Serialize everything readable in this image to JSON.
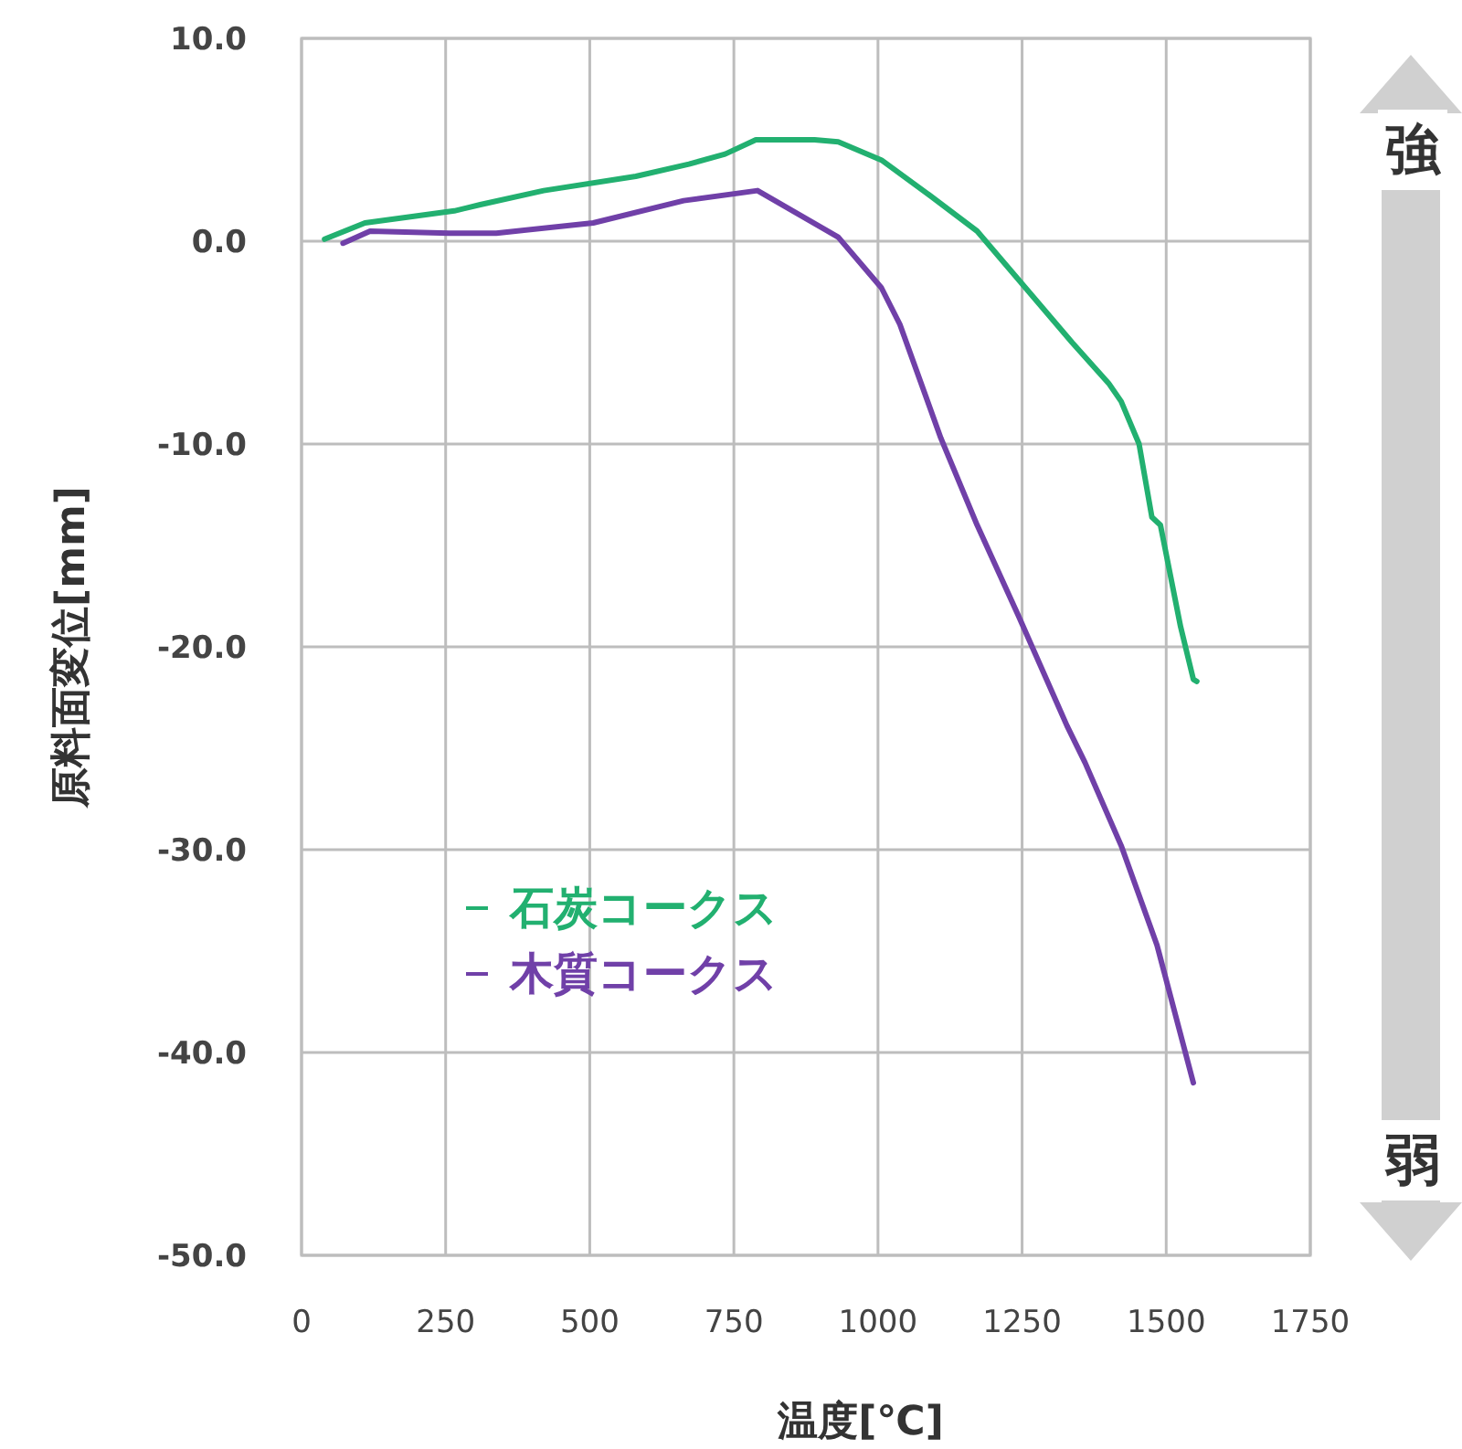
{
  "chart_data": {
    "type": "line",
    "xlabel": "温度[℃]",
    "ylabel": "原料面変位[mm]",
    "xlim": [
      0,
      1750
    ],
    "xticks": [
      0,
      250,
      500,
      750,
      1000,
      1250,
      1500,
      1750
    ],
    "ylim": [
      -50,
      10
    ],
    "yticks": [
      {
        "value": 10,
        "label": "10.0"
      },
      {
        "value": 0,
        "label": "0.0"
      },
      {
        "value": -10,
        "label": "-10.0"
      },
      {
        "value": -20,
        "label": "-20.0"
      },
      {
        "value": -30,
        "label": "-30.0"
      },
      {
        "value": -40,
        "label": "-40.0"
      },
      {
        "value": -50,
        "label": "-50.0"
      }
    ],
    "grid": true,
    "legend": "bottom left",
    "marker": "none",
    "line_style": "solid",
    "annotations": [
      "強",
      "弱"
    ],
    "series": [
      {
        "name": "石炭コークス",
        "color": "#22b070",
        "x": [
          40,
          110,
          265,
          310,
          420,
          580,
          672,
          735,
          788,
          890,
          931,
          1006,
          1088,
          1172,
          1244,
          1337,
          1400,
          1422,
          1453,
          1475,
          1490,
          1525,
          1547,
          1553
        ],
        "values": [
          0.1,
          0.9,
          1.5,
          1.8,
          2.5,
          3.2,
          3.8,
          4.3,
          5.0,
          5.0,
          4.9,
          4.0,
          2.3,
          0.5,
          -1.9,
          -5.0,
          -7.0,
          -7.9,
          -10,
          -13.6,
          -14,
          -19,
          -21.6,
          -21.7
        ]
      },
      {
        "name": "木質コークス",
        "color": "#7040a8",
        "x": [
          72,
          119,
          256,
          338,
          506,
          663,
          791,
          931,
          1006,
          1038,
          1109,
          1172,
          1244,
          1328,
          1359,
          1422,
          1484,
          1547
        ],
        "values": [
          -0.1,
          0.5,
          0.4,
          0.4,
          0.9,
          2.0,
          2.5,
          0.2,
          -2.3,
          -4.1,
          -9.7,
          -14,
          -18.5,
          -23.9,
          -25.7,
          -29.8,
          -34.7,
          -41.5
        ]
      }
    ]
  }
}
